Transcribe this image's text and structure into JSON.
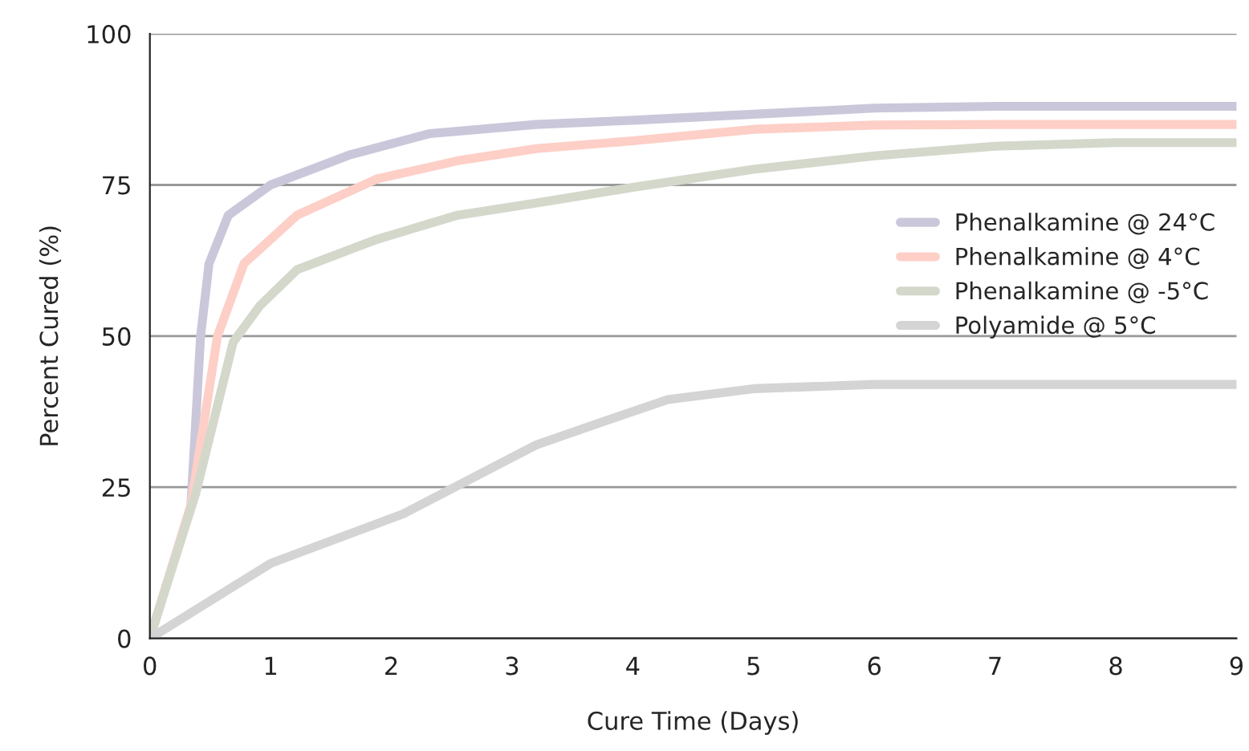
{
  "chart_data": {
    "type": "line",
    "xlabel": "Cure Time (Days)",
    "ylabel": "Percent Cured (%)",
    "xlim": [
      0,
      9
    ],
    "xticks": [
      0,
      1,
      2,
      3,
      4,
      5,
      6,
      7,
      8,
      9
    ],
    "ylim": [
      0,
      100
    ],
    "yticks": [
      0,
      25,
      50,
      75,
      100
    ],
    "grid": "y",
    "legend": "right",
    "line_style": "solid",
    "series": [
      {
        "name": "Phenalkamine @ 24°C",
        "color": "#cbc7da",
        "x": [
          0,
          0.34,
          0.42,
          0.49,
          0.65,
          1.0,
          1.66,
          2.32,
          3.2,
          4,
          5,
          6,
          7,
          8,
          9
        ],
        "values": [
          0,
          22,
          50,
          62,
          70,
          75,
          80,
          83.5,
          85,
          85.7,
          86.7,
          87.7,
          88,
          88,
          88
        ]
      },
      {
        "name": "Phenalkamine @ 4°C",
        "color": "#fdcfc7",
        "x": [
          0,
          0.34,
          0.56,
          0.78,
          1.22,
          1.88,
          2.55,
          3.2,
          4,
          5,
          6,
          7,
          8,
          9
        ],
        "values": [
          0,
          22,
          50,
          62,
          70,
          76,
          79,
          81,
          82.3,
          84.2,
          84.9,
          85,
          85,
          85
        ]
      },
      {
        "name": "Phenalkamine @ -5°C",
        "color": "#d3d8cb",
        "x": [
          0,
          0.38,
          0.69,
          0.91,
          1.22,
          1.88,
          2.55,
          3.2,
          4,
          5,
          6,
          7,
          8,
          9
        ],
        "values": [
          0,
          24,
          49,
          55,
          61,
          66,
          70,
          72,
          74.6,
          77.6,
          79.8,
          81.4,
          82,
          82
        ]
      },
      {
        "name": "Polyamide @ 5°C",
        "color": "#d4d4d4",
        "x": [
          0,
          1.0,
          2.1,
          3.2,
          3.63,
          4.29,
          5,
          6,
          7,
          8,
          9
        ],
        "values": [
          0,
          12.4,
          20.6,
          32,
          35,
          39.5,
          41.3,
          42,
          42,
          42,
          42
        ]
      }
    ]
  }
}
